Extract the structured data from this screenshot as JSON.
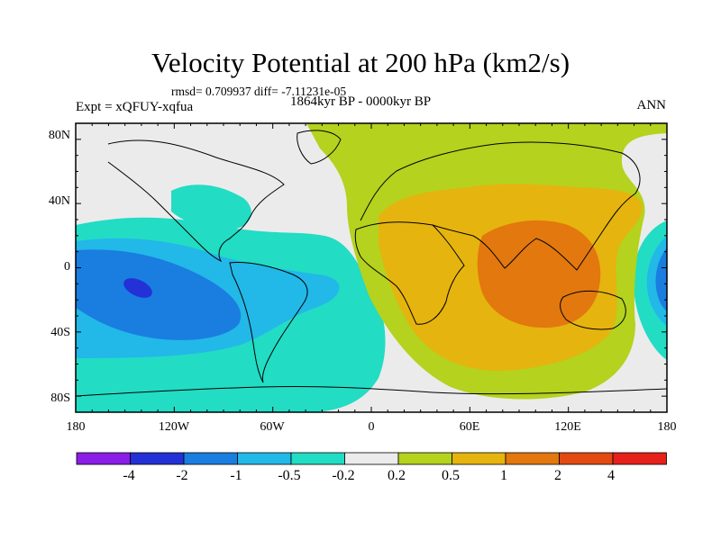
{
  "title": "Velocity Potential at 200 hPa (km2/s)",
  "stats": "rmsd= 0.709937 diff= -7.11231e-05",
  "expt": "Expt = xQFUY-xqfua",
  "period": "1864kyr BP - 0000kyr BP",
  "season": "ANN",
  "lat_labels": [
    "80N",
    "40N",
    "0",
    "40S",
    "80S"
  ],
  "lon_labels": [
    "180",
    "120W",
    "60W",
    "0",
    "60E",
    "120E",
    "180"
  ],
  "colorbar": {
    "labels": [
      "-4",
      "-2",
      "-1",
      "-0.5",
      "-0.2",
      "0.2",
      "0.5",
      "1",
      "2",
      "4"
    ],
    "colors": [
      "#8a1ee6",
      "#2431d6",
      "#1a7de0",
      "#22b8e8",
      "#22dcc4",
      "#ebebeb",
      "#b4d21e",
      "#e6b40e",
      "#e2780e",
      "#e24a12",
      "#e6201a"
    ]
  },
  "palette": {
    "c_m4": "#2431d6",
    "c_m2": "#1a7de0",
    "c_m1": "#22b8e8",
    "c_m05": "#22dcc4",
    "c_0": "#ebebeb",
    "c_p05": "#b4d21e",
    "c_p1": "#e6b40e",
    "c_p2": "#e2780e"
  }
}
